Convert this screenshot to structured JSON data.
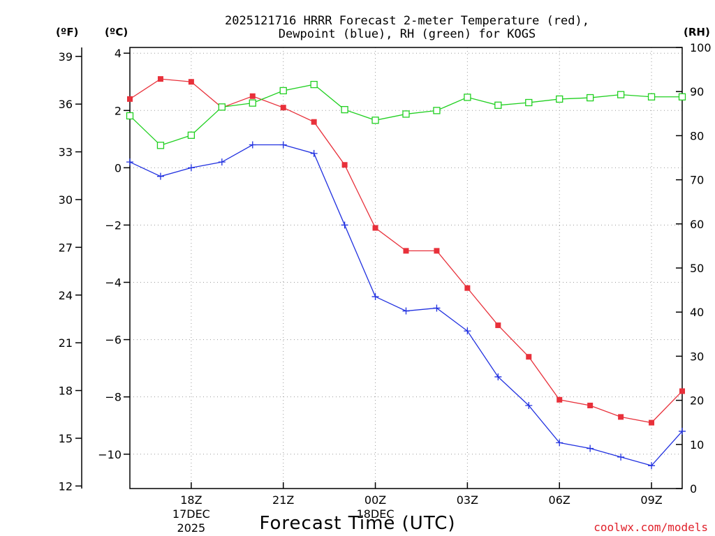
{
  "chart_data": {
    "type": "line",
    "title": [
      "2025121716 HRRR Forecast 2-meter Temperature (red),",
      "Dewpoint (blue), RH (green) for KOGS"
    ],
    "xlabel": "Forecast Time (UTC)",
    "credit": "coolwx.com/models",
    "units": {
      "fahrenheit": "(ºF)",
      "celsius": "(ºC)",
      "rh": "(RH)"
    },
    "x_hours": [
      16,
      17,
      18,
      19,
      20,
      21,
      22,
      23,
      24,
      25,
      26,
      27,
      28,
      29,
      30,
      31,
      32,
      33,
      34
    ],
    "x_range": [
      16,
      34
    ],
    "x_ticks": [
      {
        "hour": 18,
        "label": "18Z",
        "sub": [
          "17DEC",
          "2025"
        ]
      },
      {
        "hour": 21,
        "label": "21Z",
        "sub": []
      },
      {
        "hour": 24,
        "label": "00Z",
        "sub": [
          "18DEC"
        ]
      },
      {
        "hour": 27,
        "label": "03Z",
        "sub": []
      },
      {
        "hour": 30,
        "label": "06Z",
        "sub": []
      },
      {
        "hour": 33,
        "label": "09Z",
        "sub": []
      }
    ],
    "celsius_axis": {
      "range": [
        -11.2,
        4.2
      ],
      "ticks": [
        4,
        2,
        0,
        -2,
        -4,
        -6,
        -8,
        -10
      ],
      "labels": [
        "4",
        "2",
        "0",
        "−2",
        "−4",
        "−6",
        "−8",
        "−10"
      ]
    },
    "fahrenheit_axis": {
      "range": [
        11.84,
        39.56
      ],
      "ticks": [
        39,
        36,
        33,
        30,
        27,
        24,
        21,
        18,
        15,
        12
      ],
      "labels": [
        "39",
        "36",
        "33",
        "30",
        "27",
        "24",
        "21",
        "18",
        "15",
        "12"
      ]
    },
    "rh_axis": {
      "range": [
        0,
        100
      ],
      "ticks": [
        100,
        90,
        80,
        70,
        60,
        50,
        40,
        30,
        20,
        10,
        0
      ],
      "labels": [
        "100",
        "90",
        "80",
        "70",
        "60",
        "50",
        "40",
        "30",
        "20",
        "10",
        "0"
      ]
    },
    "series": [
      {
        "name": "Temperature",
        "axis": "celsius",
        "color": "#e8303a",
        "marker": "filled-square",
        "values": [
          2.4,
          3.1,
          3.0,
          2.1,
          2.5,
          2.1,
          1.6,
          0.1,
          -2.1,
          -2.9,
          -2.9,
          -4.2,
          -5.5,
          -6.6,
          -8.1,
          -8.3,
          -8.7,
          -8.9,
          -7.8
        ]
      },
      {
        "name": "Dewpoint",
        "axis": "celsius",
        "color": "#2030e0",
        "marker": "plus",
        "values": [
          0.2,
          -0.3,
          0.0,
          0.2,
          0.8,
          0.8,
          0.5,
          -2.0,
          -4.5,
          -5.0,
          -4.9,
          -5.7,
          -7.3,
          -8.3,
          -9.6,
          -9.8,
          -10.1,
          -10.4,
          -9.2
        ]
      },
      {
        "name": "RH",
        "axis": "rh",
        "color": "#20d020",
        "marker": "open-square",
        "values": [
          84.5,
          77.8,
          80.1,
          86.5,
          87.4,
          90.2,
          91.6,
          85.9,
          83.5,
          84.9,
          85.7,
          88.7,
          86.9,
          87.5,
          88.3,
          88.6,
          89.3,
          88.8,
          88.8
        ]
      }
    ]
  }
}
